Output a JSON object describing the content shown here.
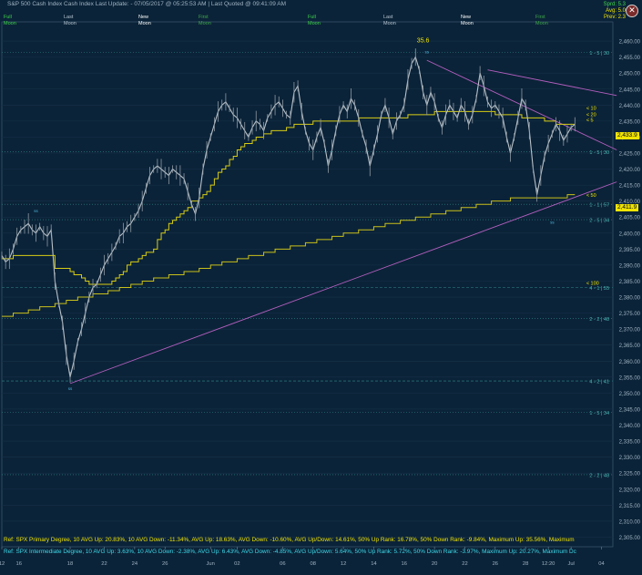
{
  "header": {
    "title": "S&P 500 Cash Index   Cash Index   Last Update:  - 07/05/2017 @ 05:25:53 AM | Last Quoted @ 09:41:09 AM"
  },
  "stats": {
    "sprd": "Sprd: 5.3",
    "avg": "Avg: 5.0",
    "prev": "Prev: 2.3"
  },
  "moons": [
    {
      "line1": "Full",
      "line2": "Moon",
      "color": "#3fd74a"
    },
    {
      "line1": "Last",
      "line2": "Moon",
      "color": "#b7c6d4"
    },
    {
      "line1": "New",
      "line2": "Moon",
      "color": "#ffffff"
    },
    {
      "line1": "First",
      "line2": "Moon",
      "color": "#3fa84a"
    },
    {
      "line1": "Full",
      "line2": "Moon",
      "color": "#3fd74a"
    },
    {
      "line1": "Last",
      "line2": "Moon",
      "color": "#b7c6d4"
    },
    {
      "line1": "New",
      "line2": "Moon",
      "color": "#ffffff"
    },
    {
      "line1": "First",
      "line2": "Moon",
      "color": "#3fa84a"
    }
  ],
  "refs": {
    "primary": "Ref: SPX Primary Degree, 10 AVG Up: 20.83%, 10 AVG Down: -11.34%, AVG Up: 18.63%, AVG Down: -10.60%, AVG Up/Down: 14.61%, 50%  Up Rank: 16.78%, 50% Down Rank: -9.84%, Maximum Up: 35.56%, Maximum",
    "intermediate": "Ref: SPX Intermediate Degree, 10 AVG Up: 3.63%, 10 AVG Down: -2.38%, AVG Up: 6.43%, AVG Down: -4.85%, AVG Up/Down: 5.64%, 50%  Up Rank: 5.72%, 50% Down Rank: -3.97%, Maximum Up: 20.27%, Maximum Dc"
  },
  "price_tags": {
    "last": "2,433.9",
    "ma50": "2,411.9"
  },
  "chart_data": {
    "type": "line",
    "ylim": [
      2302,
      2466
    ],
    "y_ticks": [
      "2,460.00",
      "2,455.00",
      "2,450.00",
      "2,445.00",
      "2,440.00",
      "2,435.00",
      "2,430.00",
      "2,425.00",
      "2,420.00",
      "2,415.00",
      "2,410.00",
      "2,405.00",
      "2,400.00",
      "2,395.00",
      "2,390.00",
      "2,385.00",
      "2,380.00",
      "2,375.00",
      "2,370.00",
      "2,365.00",
      "2,360.00",
      "2,355.00",
      "2,350.00",
      "2,345.00",
      "2,340.00",
      "2,335.00",
      "2,330.00",
      "2,325.00",
      "2,320.00",
      "2,315.00",
      "2,310.00",
      "2,305.00"
    ],
    "y_tick_values": [
      2460,
      2455,
      2450,
      2445,
      2440,
      2435,
      2430,
      2425,
      2420,
      2415,
      2410,
      2405,
      2400,
      2395,
      2390,
      2385,
      2380,
      2375,
      2370,
      2365,
      2360,
      2355,
      2350,
      2345,
      2340,
      2335,
      2330,
      2325,
      2320,
      2315,
      2310,
      2305
    ],
    "x_ticks": [
      "12",
      "16",
      "18",
      "22",
      "24",
      "26",
      "Jun",
      "02",
      "06",
      "08",
      "12",
      "14",
      "16",
      "20",
      "22",
      "26",
      "28",
      "12:20",
      "Jul",
      "04"
    ],
    "x_tick_index": [
      0,
      4.5,
      18,
      27,
      35,
      43,
      55,
      62,
      74,
      82,
      90,
      98,
      106,
      114,
      122,
      130,
      138,
      144,
      150,
      158
    ],
    "x_count": 162,
    "price": [
      2393,
      2391,
      2392,
      2395,
      2399,
      2401,
      2402,
      2403,
      2401,
      2400,
      2402,
      2400,
      2399,
      2401,
      2385,
      2378,
      2372,
      2362,
      2355,
      2360,
      2366,
      2370,
      2375,
      2380,
      2383,
      2384,
      2387,
      2390,
      2392,
      2394,
      2396,
      2399,
      2400,
      2402,
      2403,
      2405,
      2407,
      2410,
      2414,
      2418,
      2420,
      2421,
      2420,
      2419,
      2418,
      2420,
      2419,
      2418,
      2417,
      2413,
      2409,
      2406,
      2411,
      2420,
      2426,
      2430,
      2434,
      2438,
      2440,
      2441,
      2439,
      2437,
      2436,
      2434,
      2432,
      2430,
      2433,
      2435,
      2434,
      2432,
      2436,
      2438,
      2440,
      2441,
      2439,
      2437,
      2436,
      2444,
      2446,
      2438,
      2432,
      2428,
      2426,
      2430,
      2433,
      2428,
      2421,
      2426,
      2432,
      2437,
      2440,
      2438,
      2442,
      2440,
      2436,
      2431,
      2427,
      2421,
      2426,
      2431,
      2437,
      2440,
      2436,
      2431,
      2435,
      2437,
      2440,
      2448,
      2453,
      2455,
      2451,
      2444,
      2440,
      2444,
      2441,
      2436,
      2433,
      2437,
      2440,
      2438,
      2436,
      2440,
      2438,
      2434,
      2437,
      2442,
      2450,
      2446,
      2441,
      2439,
      2440,
      2438,
      2436,
      2430,
      2425,
      2430,
      2436,
      2442,
      2440,
      2432,
      2420,
      2412,
      2418,
      2424,
      2428,
      2431,
      2434,
      2432,
      2429,
      2431,
      2433,
      2434
    ],
    "ma20": [
      2392,
      2392,
      2392,
      2393,
      2393,
      2393,
      2393,
      2393,
      2393,
      2393,
      2393,
      2393,
      2393,
      2393,
      2389,
      2389,
      2389,
      2389,
      2388,
      2387,
      2387,
      2386,
      2385,
      2384,
      2384,
      2384,
      2384,
      2384,
      2384,
      2385,
      2386,
      2387,
      2388,
      2390,
      2391,
      2391,
      2392,
      2393,
      2394,
      2394,
      2395,
      2398,
      2400,
      2401,
      2403,
      2404,
      2405,
      2406,
      2407,
      2408,
      2410,
      2410,
      2411,
      2412,
      2413,
      2415,
      2417,
      2419,
      2420,
      2421,
      2423,
      2424,
      2426,
      2427,
      2428,
      2428,
      2429,
      2430,
      2430,
      2431,
      2431,
      2432,
      2432,
      2432,
      2432,
      2433,
      2433,
      2434,
      2434,
      2434,
      2434,
      2434,
      2435,
      2435,
      2435,
      2435,
      2435,
      2435,
      2435,
      2435,
      2435,
      2435,
      2435,
      2435,
      2436,
      2436,
      2436,
      2436,
      2436,
      2436,
      2436,
      2436,
      2436,
      2436,
      2436,
      2436,
      2436,
      2437,
      2437,
      2437,
      2437,
      2437,
      2437,
      2437,
      2438,
      2438,
      2438,
      2438,
      2438,
      2438,
      2438,
      2438,
      2438,
      2438,
      2438,
      2438,
      2438,
      2438,
      2438,
      2438,
      2437,
      2437,
      2437,
      2437,
      2437,
      2437,
      2437,
      2436,
      2436,
      2436,
      2436,
      2436,
      2436,
      2435,
      2435,
      2435,
      2434,
      2434,
      2434,
      2434,
      2434,
      2434
    ],
    "ma50": [
      2374,
      2374,
      2374,
      2375,
      2375,
      2375,
      2375,
      2376,
      2376,
      2376,
      2377,
      2377,
      2377,
      2377,
      2378,
      2378,
      2378,
      2379,
      2379,
      2379,
      2380,
      2380,
      2380,
      2380,
      2381,
      2381,
      2381,
      2381,
      2382,
      2382,
      2382,
      2383,
      2383,
      2383,
      2384,
      2384,
      2384,
      2385,
      2385,
      2385,
      2386,
      2386,
      2386,
      2386,
      2387,
      2387,
      2387,
      2387,
      2388,
      2388,
      2388,
      2388,
      2389,
      2389,
      2389,
      2390,
      2390,
      2390,
      2391,
      2391,
      2391,
      2391,
      2392,
      2392,
      2392,
      2393,
      2393,
      2393,
      2393,
      2394,
      2394,
      2394,
      2395,
      2395,
      2395,
      2395,
      2396,
      2396,
      2396,
      2396,
      2397,
      2397,
      2397,
      2398,
      2398,
      2398,
      2398,
      2399,
      2399,
      2399,
      2400,
      2400,
      2400,
      2400,
      2401,
      2401,
      2401,
      2401,
      2402,
      2402,
      2402,
      2403,
      2403,
      2403,
      2403,
      2404,
      2404,
      2404,
      2404,
      2405,
      2405,
      2405,
      2405,
      2406,
      2406,
      2406,
      2406,
      2407,
      2407,
      2407,
      2407,
      2408,
      2408,
      2408,
      2408,
      2409,
      2409,
      2409,
      2409,
      2410,
      2410,
      2410,
      2410,
      2410,
      2411,
      2411,
      2411,
      2411,
      2411,
      2411,
      2411,
      2411,
      2411,
      2411,
      2411,
      2411,
      2411,
      2411,
      2411,
      2412,
      2412,
      2412
    ],
    "trendlines": [
      {
        "from": [
          18,
          2353
        ],
        "to": [
          162,
          2416
        ]
      },
      {
        "from": [
          112,
          2454
        ],
        "to": [
          162,
          2426
        ]
      },
      {
        "from": [
          128,
          2451
        ],
        "to": [
          162,
          2443
        ]
      }
    ],
    "levels": [
      {
        "value": 2456.5,
        "label": "1 - 5 | 30",
        "style": "dotted"
      },
      {
        "value": 2425.4,
        "label": "1 - 5 | 30",
        "style": "dotted"
      },
      {
        "value": 2409.0,
        "label": "1 - 1 | 57",
        "style": "dotted"
      },
      {
        "value": 2404.2,
        "label": "2 - 5 | 34",
        "style": "dotted"
      },
      {
        "value": 2383.0,
        "label": "4 - 1 | 55",
        "style": "dashed"
      },
      {
        "value": 2373.3,
        "label": "2 - 2 | 48",
        "style": "dotted"
      },
      {
        "value": 2353.8,
        "label": "4 - 2 | 41",
        "style": "dashed"
      },
      {
        "value": 2344.0,
        "label": "1 - 5 | 34",
        "style": "dotted"
      },
      {
        "value": 2324.5,
        "label": "2 - 2 | 48",
        "style": "dotted"
      }
    ],
    "annotations": [
      {
        "x": 111,
        "y": 2460.3,
        "text": "35.6",
        "color": "#f0e400"
      },
      {
        "x": 154,
        "y": 2439.3,
        "text": "< 10",
        "color": "#f0e400"
      },
      {
        "x": 154,
        "y": 2437.2,
        "text": "< 20",
        "color": "#f0e400"
      },
      {
        "x": 154,
        "y": 2435.5,
        "text": "< 5",
        "color": "#f0e400"
      },
      {
        "x": 154,
        "y": 2412.0,
        "text": "< 50",
        "color": "#f0e400"
      },
      {
        "x": 154,
        "y": 2384.6,
        "text": "< 100",
        "color": "#f0e400"
      }
    ],
    "markers": [
      {
        "x": 9,
        "y": 2407,
        "text": "ss"
      },
      {
        "x": 18,
        "y": 2351.5,
        "text": "ss"
      },
      {
        "x": 112,
        "y": 2456.8,
        "text": "ss"
      },
      {
        "x": 145,
        "y": 2403.5,
        "text": "ss"
      }
    ]
  }
}
